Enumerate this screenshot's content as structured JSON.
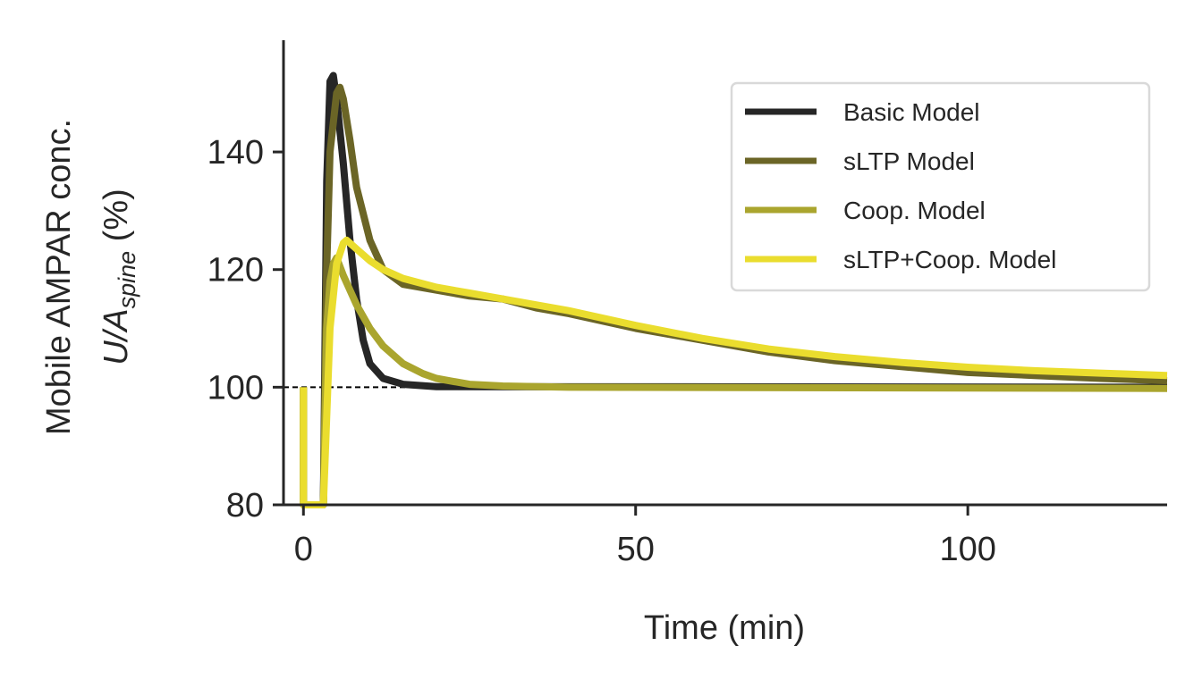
{
  "chart_data": {
    "type": "line",
    "xlabel": "Time (min)",
    "ylabel_line1": "Mobile AMPAR conc.",
    "ylabel_line2_main": "U/A",
    "ylabel_line2_sub": "spine",
    "ylabel_line2_suffix": " (%)",
    "xlim": [
      -3,
      130
    ],
    "ylim": [
      80,
      159
    ],
    "xticks": [
      0,
      50,
      100
    ],
    "yticks": [
      80,
      100,
      120,
      140
    ],
    "xtick_labels": [
      "0",
      "50",
      "100"
    ],
    "ytick_labels": [
      "80",
      "100",
      "120",
      "140"
    ],
    "reference_line": 100,
    "legend_position": "top-right",
    "grid": false,
    "series": [
      {
        "name": "Basic Model",
        "color": "#262626",
        "points": [
          [
            0,
            100
          ],
          [
            0,
            80
          ],
          [
            3,
            80
          ],
          [
            3.5,
            135
          ],
          [
            4,
            152
          ],
          [
            4.5,
            153
          ],
          [
            5,
            149
          ],
          [
            6,
            138
          ],
          [
            7,
            125
          ],
          [
            8,
            115
          ],
          [
            9,
            108
          ],
          [
            10,
            104
          ],
          [
            12,
            101.5
          ],
          [
            15,
            100.5
          ],
          [
            20,
            100.1
          ],
          [
            130,
            100
          ]
        ]
      },
      {
        "name": "sLTP Model",
        "color": "#6b6526",
        "points": [
          [
            0,
            100
          ],
          [
            0,
            80
          ],
          [
            3,
            80
          ],
          [
            3.5,
            120
          ],
          [
            4,
            140
          ],
          [
            5,
            150
          ],
          [
            5.5,
            151
          ],
          [
            6,
            149
          ],
          [
            7,
            142
          ],
          [
            8,
            134
          ],
          [
            10,
            125
          ],
          [
            12,
            120
          ],
          [
            15,
            117.5
          ],
          [
            20,
            116.5
          ],
          [
            25,
            115.5
          ],
          [
            30,
            115
          ],
          [
            35,
            113.5
          ],
          [
            40,
            112.5
          ],
          [
            50,
            110
          ],
          [
            60,
            108
          ],
          [
            70,
            106
          ],
          [
            80,
            104.5
          ],
          [
            90,
            103.5
          ],
          [
            100,
            102.5
          ],
          [
            110,
            102
          ],
          [
            120,
            101.5
          ],
          [
            130,
            101.1
          ]
        ]
      },
      {
        "name": "Coop. Model",
        "color": "#aaa52e",
        "points": [
          [
            0,
            100
          ],
          [
            0,
            80
          ],
          [
            3,
            80
          ],
          [
            3.5,
            110
          ],
          [
            4,
            118
          ],
          [
            4.5,
            121
          ],
          [
            5,
            122
          ],
          [
            6,
            119
          ],
          [
            8,
            114
          ],
          [
            10,
            110
          ],
          [
            12,
            107
          ],
          [
            15,
            104
          ],
          [
            18,
            102.3
          ],
          [
            20,
            101.5
          ],
          [
            25,
            100.5
          ],
          [
            30,
            100.2
          ],
          [
            40,
            100
          ],
          [
            130,
            99.8
          ]
        ]
      },
      {
        "name": "sLTP+Coop. Model",
        "color": "#eadd2e",
        "points": [
          [
            0,
            100
          ],
          [
            0,
            80
          ],
          [
            3,
            80
          ],
          [
            4,
            110
          ],
          [
            5,
            121
          ],
          [
            6,
            124.5
          ],
          [
            6.5,
            125
          ],
          [
            7,
            124.5
          ],
          [
            8,
            123.5
          ],
          [
            10,
            121.5
          ],
          [
            12,
            120
          ],
          [
            15,
            118.5
          ],
          [
            20,
            117
          ],
          [
            25,
            116
          ],
          [
            30,
            115
          ],
          [
            35,
            114
          ],
          [
            40,
            113
          ],
          [
            50,
            110.5
          ],
          [
            60,
            108.3
          ],
          [
            70,
            106.5
          ],
          [
            80,
            105.2
          ],
          [
            90,
            104.2
          ],
          [
            100,
            103.4
          ],
          [
            110,
            102.8
          ],
          [
            120,
            102.4
          ],
          [
            130,
            102
          ]
        ]
      }
    ]
  }
}
